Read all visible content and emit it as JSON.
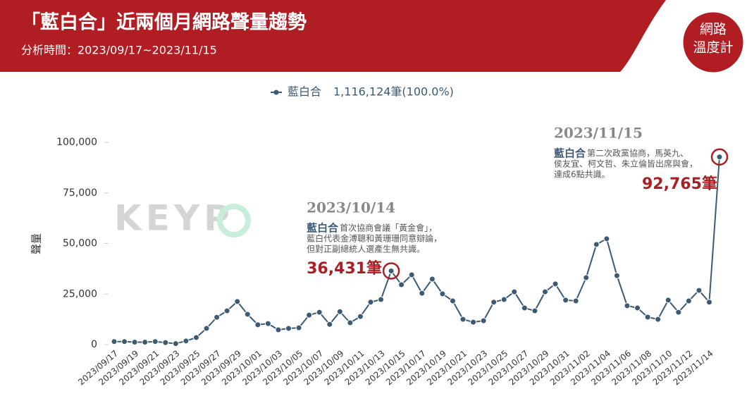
{
  "header": {
    "title": "「藍白合」近兩個月網路聲量趨勢",
    "subtitle": "分析時間：2023/09/17~2023/11/15",
    "logo": [
      "網路",
      "溫度計"
    ]
  },
  "watermark": "KEYP",
  "chart_data": {
    "type": "line",
    "legend_total": "1,116,124筆(100.0%)",
    "ylabel": "聲量",
    "categories": [
      "2023/09/17",
      null,
      "2023/09/19",
      null,
      "2023/09/21",
      null,
      "2023/09/23",
      null,
      "2023/09/25",
      null,
      "2023/09/27",
      null,
      "2023/09/29",
      null,
      "2023/10/01",
      null,
      "2023/10/03",
      null,
      "2023/10/05",
      null,
      "2023/10/07",
      null,
      "2023/10/09",
      null,
      "2023/10/11",
      null,
      "2023/10/13",
      null,
      "2023/10/15",
      null,
      "2023/10/17",
      null,
      "2023/10/19",
      null,
      "2023/10/21",
      null,
      "2023/10/23",
      null,
      "2023/10/25",
      null,
      "2023/10/27",
      null,
      "2023/10/29",
      null,
      "2023/10/31",
      null,
      "2023/11/02",
      null,
      "2023/11/04",
      null,
      "2023/11/06",
      null,
      "2023/11/08",
      null,
      "2023/11/10",
      null,
      "2023/11/12",
      null,
      "2023/11/14",
      null
    ],
    "series": [
      {
        "name": "藍白合",
        "color": "#3d5a73",
        "values": [
          1500,
          1500,
          1200,
          1200,
          1500,
          1000,
          500,
          1800,
          3500,
          8000,
          13500,
          16700,
          21300,
          15000,
          9800,
          10400,
          7300,
          8000,
          8300,
          14600,
          16000,
          10000,
          16300,
          10800,
          13900,
          21000,
          22300,
          36431,
          29600,
          34500,
          25400,
          32400,
          25100,
          21600,
          12500,
          11100,
          11800,
          21000,
          22300,
          26100,
          18100,
          16700,
          26100,
          30000,
          22000,
          21600,
          33100,
          49500,
          52300,
          34100,
          19200,
          18100,
          13600,
          12500,
          22000,
          16000,
          21600,
          26800,
          21000,
          92765
        ]
      }
    ],
    "ylim": [
      0,
      100000
    ],
    "yticks": [
      0,
      {
        "value": 25000,
        "label": "25,000"
      },
      {
        "value": 50000,
        "label": "50,000"
      },
      {
        "value": 75000,
        "label": "75,000"
      },
      {
        "value": 100000,
        "label": "100,000"
      }
    ],
    "grid": false,
    "annotations": [
      {
        "date": "2023/10/14",
        "label": "藍白合",
        "text": [
          "首次協商會議「黃金會」，",
          "藍白代表金溥聰和黃珊珊同意辯論，",
          "但對正副總統人選產生無共識。"
        ],
        "value_label": "36,431筆"
      },
      {
        "date": "2023/11/15",
        "label": "藍白合",
        "text": [
          "第二次政黨協商，馬英九、",
          "侯友宜、柯文哲、朱立倫皆出席與會，",
          "達成6點共識。"
        ],
        "value_label": "92,765筆"
      }
    ]
  }
}
